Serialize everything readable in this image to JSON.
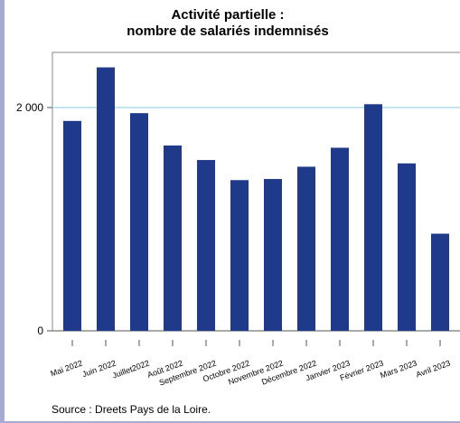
{
  "chart_data": {
    "type": "bar",
    "title_line1": "Activité partielle :",
    "title_line2": "nombre de salariés indemnisés",
    "categories": [
      "Mai 2022",
      "Juin 2022",
      "Juillet2022",
      "Août 2022",
      "Septembre 2022",
      "Octobre 2022",
      "Novembre 2022",
      "Décembre 2022",
      "Janvier 2023",
      "Février 2023",
      "Mars 2023",
      "Avril 2023"
    ],
    "values": [
      1880,
      2360,
      1950,
      1660,
      1530,
      1350,
      1360,
      1470,
      1640,
      2030,
      1500,
      870
    ],
    "ylim": [
      0,
      2500
    ],
    "yticks": [
      0,
      2000
    ],
    "ytick_labels": [
      "0",
      "2 000"
    ],
    "bar_color": "#1f3a8a",
    "grid_color": "#87cfe3",
    "grid": true
  },
  "source": "Source : Dreets Pays de la Loire."
}
